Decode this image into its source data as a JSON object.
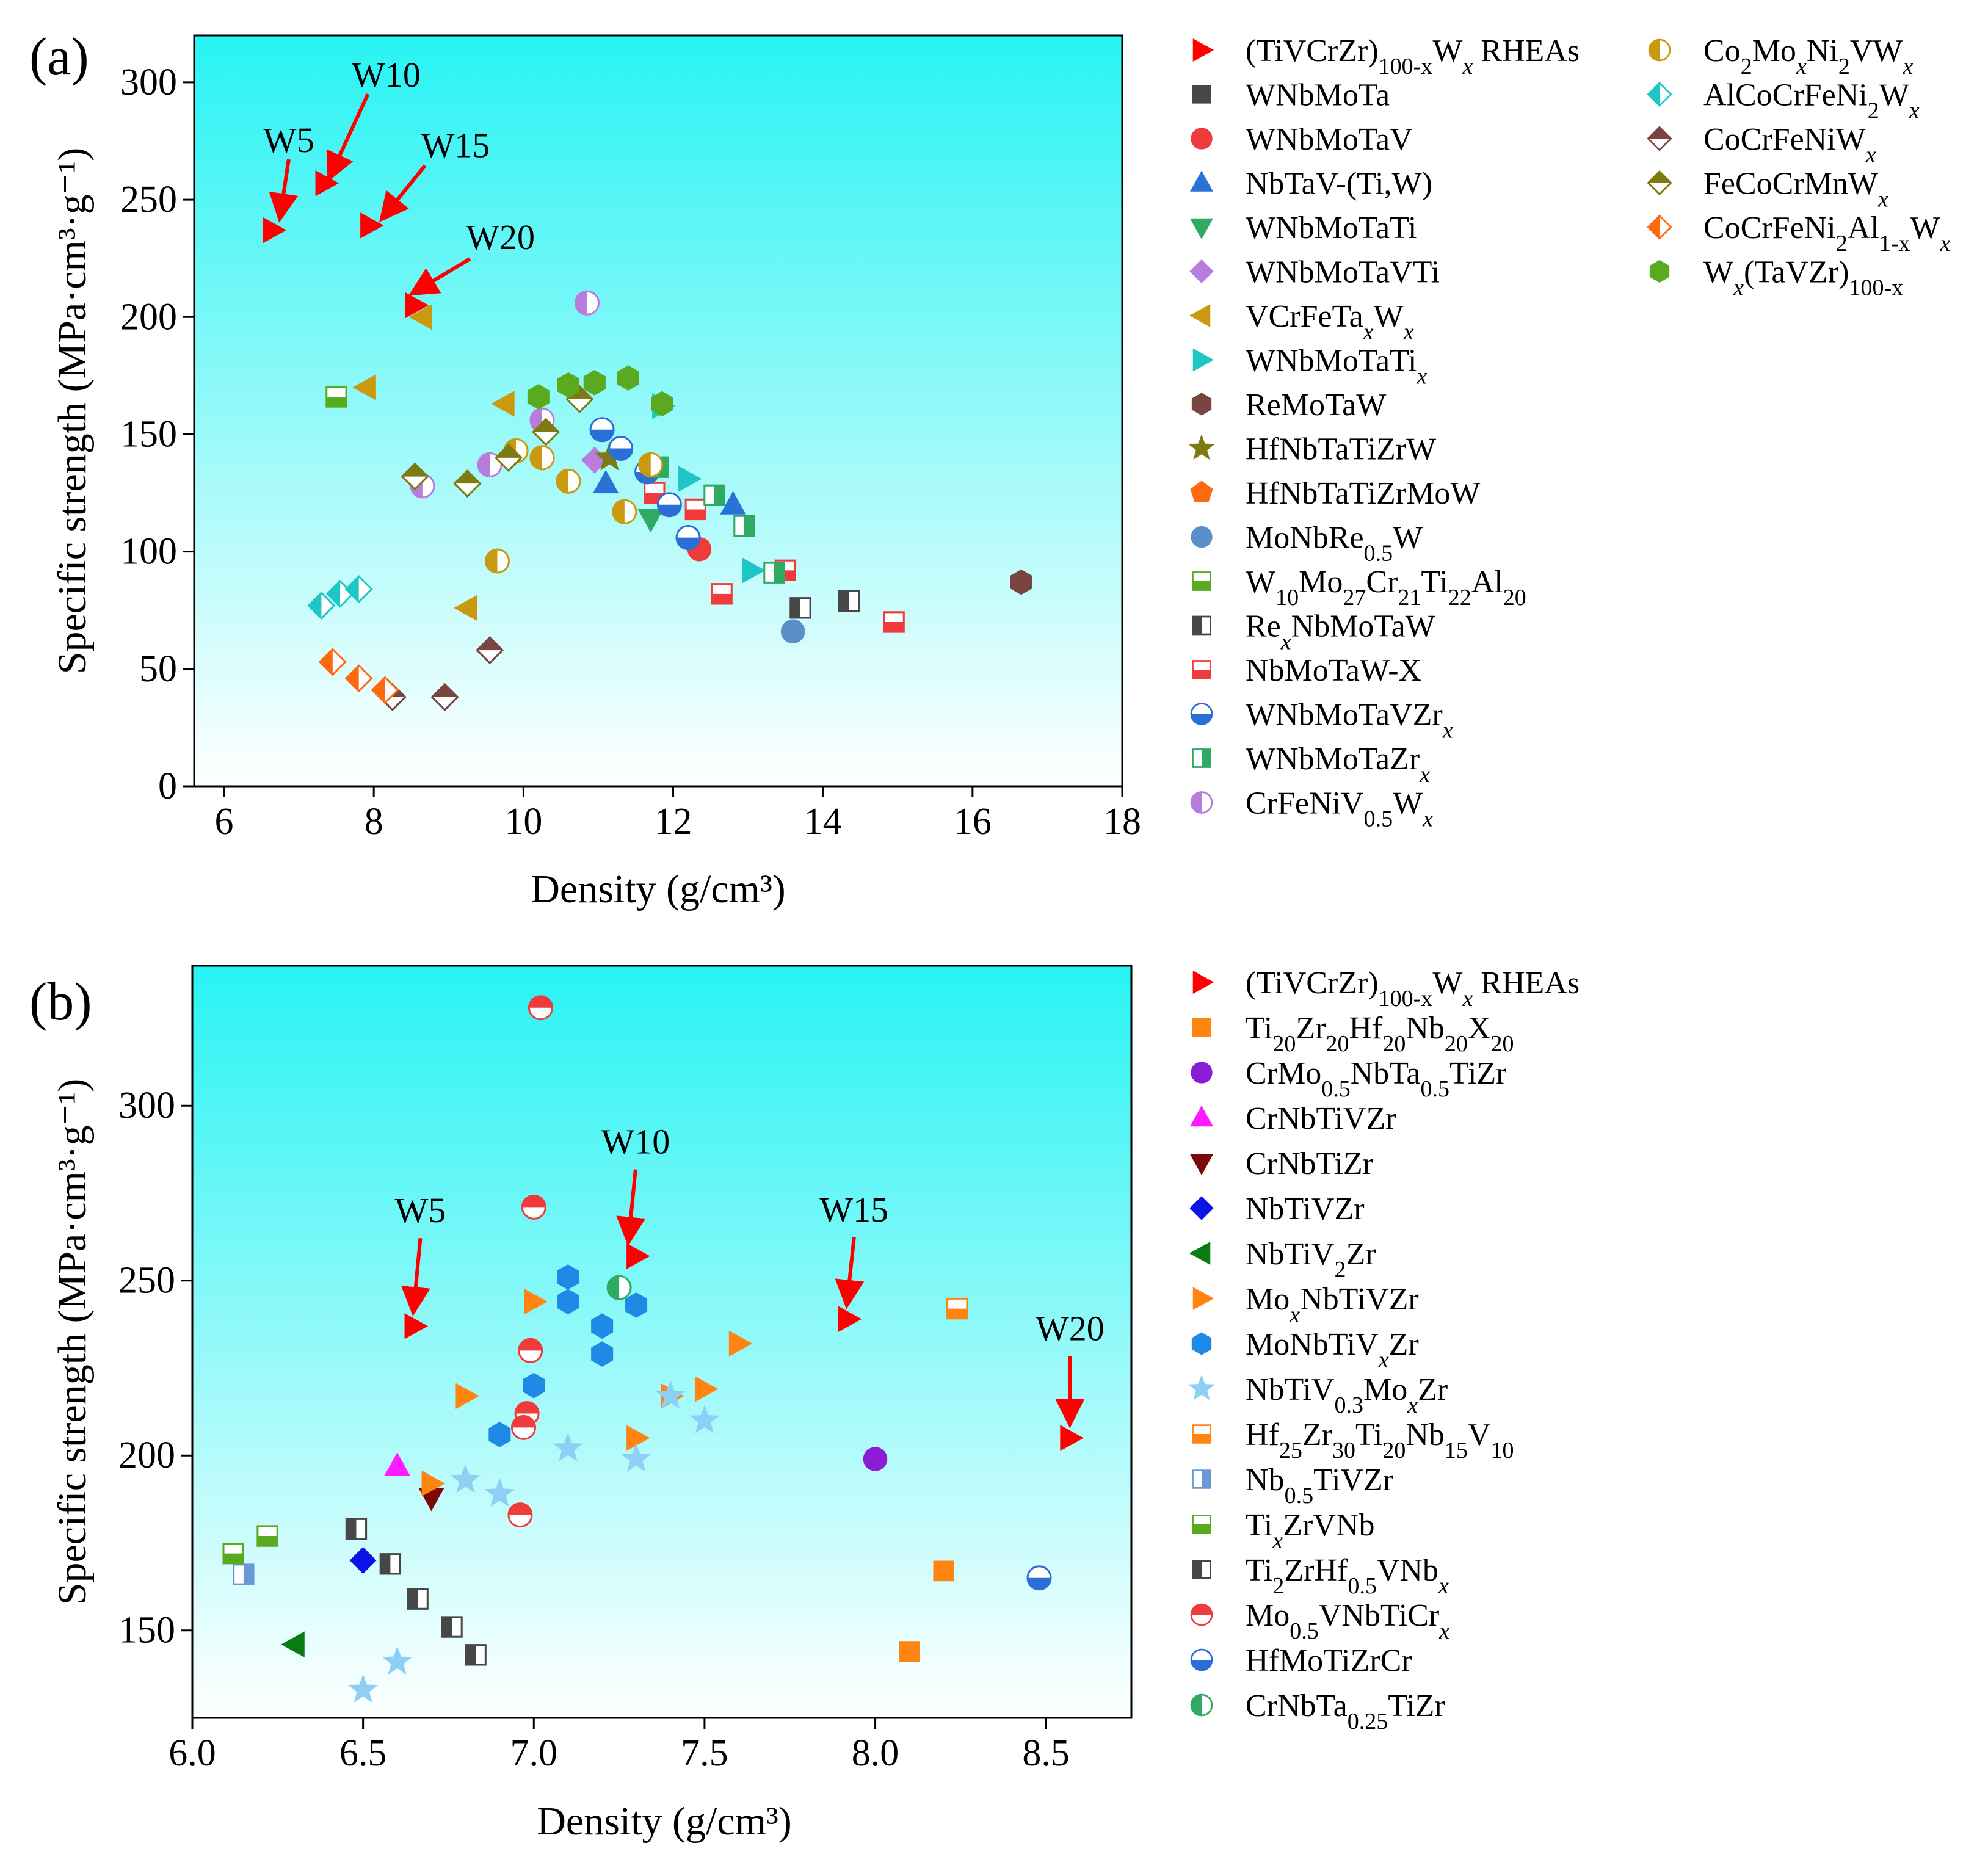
{
  "colors": {
    "bg_top": "#28f3f3",
    "bg_bottom": "#ffffff",
    "highlight": "#ff0000",
    "axis": "#000000"
  },
  "chart_data": [
    {
      "type": "scatter",
      "panel_label": "(a)",
      "xlabel": "Density (g/cm³)",
      "ylabel": "Specific strength (MPa·cm³·g⁻¹)",
      "xlim": [
        5.6,
        18
      ],
      "ylim": [
        0,
        320
      ],
      "xticks": [
        6,
        8,
        10,
        12,
        14,
        16,
        18
      ],
      "yticks": [
        0,
        50,
        100,
        150,
        200,
        250,
        300
      ],
      "grid": false,
      "legend_position": "right",
      "annotations": [
        {
          "text": "W5",
          "x": 6.7,
          "y": 237
        },
        {
          "text": "W10",
          "x": 7.35,
          "y": 257
        },
        {
          "text": "W15",
          "x": 7.95,
          "y": 239
        },
        {
          "text": "W20",
          "x": 8.55,
          "y": 205
        }
      ],
      "series": [
        {
          "name": "(TiVCrZr)100-xWx RHEAs",
          "legend_text": "(TiVCrZr)_100-x W_x RHEAs",
          "marker": "tri-right",
          "fill": "full",
          "color": "#ff0000",
          "points": [
            [
              6.65,
              237
            ],
            [
              7.35,
              257
            ],
            [
              7.95,
              239
            ],
            [
              8.55,
              205
            ]
          ]
        },
        {
          "name": "WNbMoTa",
          "legend_text": "WNbMoTa",
          "marker": "square",
          "fill": "full",
          "color": "#474747",
          "points": []
        },
        {
          "name": "WNbMoTaV",
          "legend_text": "WNbMoTaV",
          "marker": "circle",
          "fill": "full",
          "color": "#ef3b3b",
          "points": [
            [
              12.35,
              101
            ]
          ]
        },
        {
          "name": "NbTaV-(Ti,W)",
          "legend_text": "NbTaV-(Ti,W)",
          "marker": "tri-up",
          "fill": "full",
          "color": "#2a73d6",
          "points": [
            [
              11.1,
              129
            ],
            [
              12.8,
              120
            ]
          ]
        },
        {
          "name": "WNbMoTaTi",
          "legend_text": "WNbMoTaTi",
          "marker": "tri-down",
          "fill": "full",
          "color": "#2eaa62",
          "points": [
            [
              11.7,
              114
            ]
          ]
        },
        {
          "name": "WNbMoTaVTi",
          "legend_text": "WNbMoTaVTi",
          "marker": "diamond",
          "fill": "full",
          "color": "#b77ddd",
          "points": [
            [
              10.95,
              139
            ]
          ]
        },
        {
          "name": "VCrFeTaxWx",
          "legend_text": "VCrFeTa_x W_x",
          "marker": "tri-left",
          "fill": "full",
          "color": "#c99a10",
          "points": [
            [
              7.9,
              170
            ],
            [
              8.65,
              200
            ],
            [
              9.75,
              163
            ],
            [
              9.25,
              76
            ]
          ]
        },
        {
          "name": "WNbMoTaTix",
          "legend_text": "WNbMoTaTi_x",
          "marker": "tri-right",
          "fill": "full",
          "color": "#1ec6c6",
          "points": [
            [
              11.85,
              162
            ],
            [
              12.2,
              131
            ],
            [
              13.05,
              92
            ]
          ]
        },
        {
          "name": "ReMoTaW",
          "legend_text": "ReMoTaW",
          "marker": "hexagon",
          "fill": "full",
          "color": "#7a4540",
          "points": [
            [
              16.65,
              87
            ]
          ]
        },
        {
          "name": "HfNbTaTiZrW",
          "legend_text": "HfNbTaTiZrW",
          "marker": "star",
          "fill": "full",
          "color": "#7d7a12",
          "points": [
            [
              11.15,
              140
            ]
          ]
        },
        {
          "name": "HfNbTaTiZrMoW",
          "legend_text": "HfNbTaTiZrMoW",
          "marker": "pentagon",
          "fill": "full",
          "color": "#ff6a10",
          "points": []
        },
        {
          "name": "MoNbRe0.5W",
          "legend_text": "MoNbRe_0.5 W",
          "marker": "circle",
          "fill": "full",
          "color": "#5b8fc9",
          "points": [
            [
              13.6,
              66
            ]
          ]
        },
        {
          "name": "W10Mo27Cr21Ti22Al20",
          "legend_text": "W_10 Mo_27 Cr_21 Ti_22 Al_20",
          "marker": "square",
          "fill": "bottom",
          "color": "#5aaa20",
          "points": [
            [
              7.5,
              166
            ]
          ]
        },
        {
          "name": "RexNbMoTaW",
          "legend_text": "Re_x NbMoTaW",
          "marker": "square",
          "fill": "left",
          "color": "#474747",
          "points": [
            [
              13.7,
              76
            ],
            [
              14.35,
              79
            ]
          ]
        },
        {
          "name": "NbMoTaW-X",
          "legend_text": "NbMoTaW-X",
          "marker": "square",
          "fill": "bottom",
          "color": "#ef3b3b",
          "points": [
            [
              11.75,
              125
            ],
            [
              12.3,
              118
            ],
            [
              12.65,
              82
            ],
            [
              13.5,
              92
            ],
            [
              14.95,
              70
            ]
          ]
        },
        {
          "name": "WNbMoTaVZrx",
          "legend_text": "WNbMoTaVZr_x",
          "marker": "circle",
          "fill": "bottom",
          "color": "#2a6fd6",
          "points": [
            [
              11.05,
              152
            ],
            [
              11.3,
              144
            ],
            [
              11.65,
              134
            ],
            [
              11.95,
              120
            ],
            [
              12.2,
              106
            ]
          ]
        },
        {
          "name": "WNbMoTaZrx",
          "legend_text": "WNbMoTaZr_x",
          "marker": "square",
          "fill": "right",
          "color": "#2eaa62",
          "points": [
            [
              11.8,
              136
            ],
            [
              12.55,
              124
            ],
            [
              12.95,
              111
            ],
            [
              13.35,
              91
            ]
          ]
        },
        {
          "name": "CrFeNiV0.5Wx",
          "legend_text": "CrFeNiV_0.5 W_x",
          "marker": "circle",
          "fill": "left",
          "color": "#b77ddd",
          "points": [
            [
              10.85,
              206
            ],
            [
              10.25,
              156
            ],
            [
              9.55,
              137
            ],
            [
              8.65,
              128
            ]
          ]
        },
        {
          "name": "Co2MoxNi2VWx",
          "legend_text": "Co_2 Mo_x Ni_2 VW_x",
          "marker": "circle",
          "fill": "left",
          "color": "#c99a10",
          "points": [
            [
              9.9,
              143
            ],
            [
              10.25,
              140
            ],
            [
              9.65,
              96
            ],
            [
              10.6,
              130
            ],
            [
              11.35,
              117
            ],
            [
              11.7,
              137
            ]
          ]
        },
        {
          "name": "AlCoCrFeNi2Wx",
          "legend_text": "AlCoCrFeNi_2 W_x",
          "marker": "diamond",
          "fill": "left",
          "color": "#1ec6c6",
          "points": [
            [
              7.3,
              77
            ],
            [
              7.55,
              82
            ],
            [
              7.8,
              84
            ]
          ]
        },
        {
          "name": "CoCrFeNiWx",
          "legend_text": "CoCrFeNiW_x",
          "marker": "diamond",
          "fill": "top",
          "color": "#7a4540",
          "points": [
            [
              9.55,
              58
            ],
            [
              8.95,
              38
            ],
            [
              8.25,
              38
            ]
          ]
        },
        {
          "name": "FeCoCrMnWx",
          "legend_text": "FeCoCrMnW_x",
          "marker": "diamond",
          "fill": "top",
          "color": "#7d7a12",
          "points": [
            [
              8.55,
              132
            ],
            [
              9.25,
              129
            ],
            [
              9.8,
              140
            ],
            [
              10.3,
              151
            ],
            [
              10.75,
              165
            ]
          ]
        },
        {
          "name": "CoCrFeNi2Al1-xWx",
          "legend_text": "CoCrFeNi_2 Al_1-x W_x",
          "marker": "diamond",
          "fill": "left",
          "color": "#ff6a10",
          "points": [
            [
              7.45,
              53
            ],
            [
              7.8,
              46
            ],
            [
              8.15,
              41
            ]
          ]
        },
        {
          "name": "Wx(TaVZr)100-x",
          "legend_text": "W_x (TaVZr)_100-x",
          "marker": "hexagon",
          "fill": "full",
          "color": "#5aaa20",
          "points": [
            [
              10.2,
              166
            ],
            [
              10.6,
              171
            ],
            [
              10.95,
              172
            ],
            [
              11.4,
              174
            ],
            [
              11.85,
              163
            ]
          ]
        }
      ]
    },
    {
      "type": "scatter",
      "panel_label": "(b)",
      "xlabel": "Density (g/cm³)",
      "ylabel": "Specific strength (MPa·cm³·g⁻¹)",
      "xlim": [
        6.0,
        8.75
      ],
      "ylim": [
        125,
        340
      ],
      "xticks": [
        6.0,
        6.5,
        7.0,
        7.5,
        8.0,
        8.5
      ],
      "yticks": [
        150,
        200,
        250,
        300
      ],
      "grid": false,
      "legend_position": "right",
      "annotations": [
        {
          "text": "W5",
          "x": 6.65,
          "y": 237
        },
        {
          "text": "W10",
          "x": 7.28,
          "y": 257
        },
        {
          "text": "W15",
          "x": 7.92,
          "y": 239
        },
        {
          "text": "W20",
          "x": 8.57,
          "y": 205
        }
      ],
      "series": [
        {
          "name": "(TiVCrZr)100-xWx RHEAs",
          "legend_text": "(TiVCrZr)_100-x W_x RHEAs",
          "marker": "tri-right",
          "fill": "full",
          "color": "#ff0000",
          "points": [
            [
              6.65,
              237
            ],
            [
              7.3,
              257
            ],
            [
              7.92,
              239
            ],
            [
              8.57,
              205
            ]
          ]
        },
        {
          "name": "Ti20Zr20Hf20Nb20X20",
          "legend_text": "Ti_20 Zr_20 Hf_20 Nb_20 X_20",
          "marker": "square",
          "fill": "full",
          "color": "#ff8412",
          "points": [
            [
              8.2,
              167
            ],
            [
              8.1,
              144
            ]
          ]
        },
        {
          "name": "CrMo0.5NbTa0.5TiZr",
          "legend_text": "CrMo_0.5 NbTa_0.5 TiZr",
          "marker": "circle",
          "fill": "full",
          "color": "#8a1cd6",
          "points": [
            [
              8.0,
              199
            ]
          ]
        },
        {
          "name": "CrNbTiVZr",
          "legend_text": "CrNbTiVZr",
          "marker": "tri-up",
          "fill": "full",
          "color": "#ff1aff",
          "points": [
            [
              6.6,
              197
            ]
          ]
        },
        {
          "name": "CrNbTiZr",
          "legend_text": "CrNbTiZr",
          "marker": "tri-down",
          "fill": "full",
          "color": "#7a0a0a",
          "points": [
            [
              6.7,
              188
            ]
          ]
        },
        {
          "name": "NbTiVZr",
          "legend_text": "NbTiVZr",
          "marker": "diamond",
          "fill": "full",
          "color": "#0a14e6",
          "points": [
            [
              6.5,
              170
            ]
          ]
        },
        {
          "name": "NbTiV2Zr",
          "legend_text": "NbTiV_2 Zr",
          "marker": "tri-left",
          "fill": "full",
          "color": "#0a7a14",
          "points": [
            [
              6.3,
              146
            ]
          ]
        },
        {
          "name": "MoxNbTiVZr",
          "legend_text": "Mo_x NbTiVZr",
          "marker": "tri-right",
          "fill": "full",
          "color": "#ff8412",
          "points": [
            [
              6.7,
              192
            ],
            [
              6.8,
              217
            ],
            [
              7.0,
              244
            ],
            [
              7.3,
              205
            ],
            [
              7.4,
              217
            ],
            [
              7.5,
              219
            ],
            [
              7.6,
              232
            ]
          ]
        },
        {
          "name": "MoNbTiVxZr",
          "legend_text": "MoNbTiV_x Zr",
          "marker": "hexagon",
          "fill": "full",
          "color": "#1e8ae6",
          "points": [
            [
              6.9,
              206
            ],
            [
              7.0,
              220
            ],
            [
              7.1,
              244
            ],
            [
              7.1,
              251
            ],
            [
              7.2,
              237
            ],
            [
              7.2,
              229
            ],
            [
              7.3,
              243
            ]
          ]
        },
        {
          "name": "NbTiV0.3MoxZr",
          "legend_text": "NbTiV_0.3 Mo_x Zr",
          "marker": "star",
          "fill": "full",
          "color": "#8ed0f5",
          "points": [
            [
              6.5,
              133
            ],
            [
              6.6,
              141
            ],
            [
              6.8,
              193
            ],
            [
              6.9,
              189
            ],
            [
              7.1,
              202
            ],
            [
              7.3,
              199
            ],
            [
              7.4,
              217
            ],
            [
              7.5,
              210
            ]
          ]
        },
        {
          "name": "Hf25Zr30Ti20Nb15V10",
          "legend_text": "Hf_25 Zr_30 Ti_20 Nb_15 V_10",
          "marker": "square",
          "fill": "bottom",
          "color": "#ff8412",
          "points": [
            [
              8.24,
              242
            ]
          ]
        },
        {
          "name": "Nb0.5TiVZr",
          "legend_text": "Nb_0.5 TiVZr",
          "marker": "square",
          "fill": "right",
          "color": "#6a9ad6",
          "points": [
            [
              6.15,
              166
            ]
          ]
        },
        {
          "name": "TixZrVNb",
          "legend_text": "Ti_x ZrVNb",
          "marker": "square",
          "fill": "bottom",
          "color": "#5aaa20",
          "points": [
            [
              6.12,
              172
            ],
            [
              6.22,
              177
            ]
          ]
        },
        {
          "name": "Ti2ZrHf0.5VNbx",
          "legend_text": "Ti_2 ZrHf_0.5 VNb_x",
          "marker": "square",
          "fill": "left",
          "color": "#474747",
          "points": [
            [
              6.48,
              179
            ],
            [
              6.58,
              169
            ],
            [
              6.66,
              159
            ],
            [
              6.76,
              151
            ],
            [
              6.83,
              143
            ]
          ]
        },
        {
          "name": "Mo0.5VNbTiCrx",
          "legend_text": "Mo_0.5 VNbTiCr_x",
          "marker": "circle",
          "fill": "top",
          "color": "#ef3b3b",
          "points": [
            [
              7.02,
              328
            ],
            [
              7.0,
              271
            ],
            [
              6.99,
              230
            ],
            [
              6.98,
              212
            ],
            [
              6.97,
              208
            ],
            [
              6.96,
              183
            ]
          ]
        },
        {
          "name": "HfMoTiZrCr",
          "legend_text": "HfMoTiZrCr",
          "marker": "circle",
          "fill": "bottom",
          "color": "#2a6fd6",
          "points": [
            [
              8.48,
              165
            ]
          ]
        },
        {
          "name": "CrNbTa0.25TiZr",
          "legend_text": "CrNbTa_0.25 TiZr",
          "marker": "circle",
          "fill": "left",
          "color": "#2eaa62",
          "points": [
            [
              7.25,
              248
            ]
          ]
        }
      ]
    }
  ]
}
